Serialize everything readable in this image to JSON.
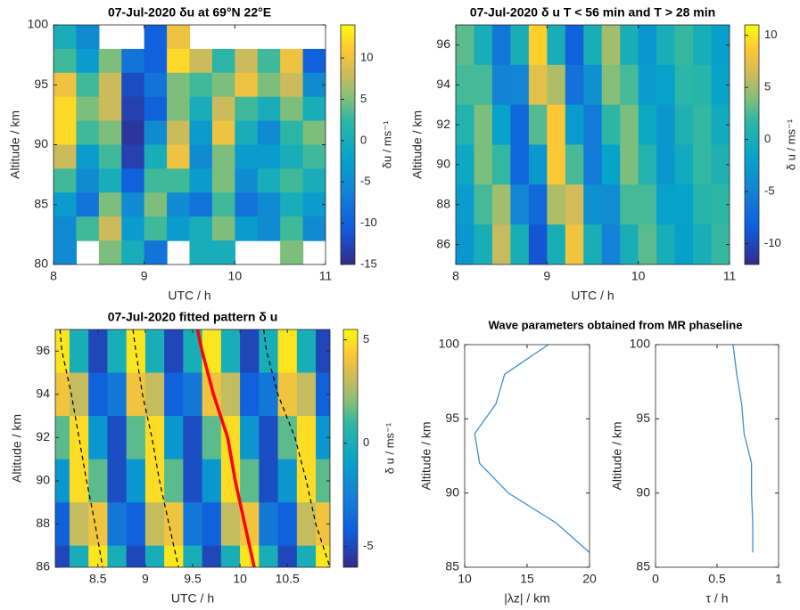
{
  "chart_data": [
    {
      "type": "heatmap",
      "title": "07-Jul-2020 δu at 69°N 22°E",
      "xlabel": "UTC / h",
      "ylabel": "Altitude / km",
      "clabel": "δu / ms⁻¹",
      "xlim": [
        8,
        11
      ],
      "xticks": [
        8,
        9,
        10,
        11
      ],
      "ylim": [
        80,
        100
      ],
      "yticks": [
        80,
        85,
        90,
        95,
        100
      ],
      "clim": [
        -15,
        14
      ],
      "cticks": [
        -15,
        -10,
        -5,
        0,
        5,
        10
      ],
      "x": [
        8.125,
        8.375,
        8.625,
        8.875,
        9.125,
        9.375,
        9.625,
        9.875,
        10.125,
        10.375,
        10.625,
        10.875
      ],
      "y": [
        99,
        97,
        95,
        93,
        91,
        89,
        87,
        85,
        83,
        81
      ],
      "z": [
        [
          0,
          -5,
          null,
          null,
          -10,
          10,
          null,
          null,
          null,
          null,
          null,
          null
        ],
        [
          3,
          -3,
          5,
          -8,
          -10,
          12,
          8,
          2,
          8,
          3,
          10,
          -10
        ],
        [
          10,
          3,
          8,
          -12,
          -8,
          5,
          3,
          5,
          10,
          5,
          8,
          -5
        ],
        [
          12,
          5,
          8,
          -13,
          -10,
          5,
          0,
          8,
          3,
          0,
          5,
          0
        ],
        [
          12,
          3,
          5,
          -14,
          -5,
          8,
          -3,
          10,
          0,
          -5,
          2,
          5
        ],
        [
          8,
          -3,
          3,
          -13,
          0,
          10,
          -5,
          5,
          -3,
          -3,
          0,
          3
        ],
        [
          3,
          -5,
          0,
          -10,
          3,
          3,
          -3,
          5,
          -5,
          0,
          3,
          0
        ],
        [
          -3,
          -8,
          5,
          -5,
          5,
          -5,
          -8,
          3,
          -8,
          -5,
          0,
          -3
        ],
        [
          -5,
          3,
          8,
          -3,
          3,
          -3,
          0,
          5,
          -3,
          -5,
          3,
          -5
        ],
        [
          -5,
          null,
          5,
          0,
          -8,
          null,
          0,
          0,
          null,
          null,
          5,
          null
        ]
      ]
    },
    {
      "type": "heatmap",
      "title": "07-Jul-2020 δ u T < 56 min and T > 28 min",
      "xlabel": "UTC / h",
      "ylabel": "Altitude / km",
      "clabel": "δ u / ms⁻¹",
      "xlim": [
        8,
        11
      ],
      "xticks": [
        8,
        9,
        10,
        11
      ],
      "ylim": [
        85,
        97
      ],
      "yticks": [
        86,
        88,
        90,
        92,
        94,
        96
      ],
      "clim": [
        -12,
        11
      ],
      "cticks": [
        -10,
        -5,
        0,
        5,
        10
      ],
      "x": [
        8.1,
        8.3,
        8.5,
        8.7,
        8.9,
        9.1,
        9.3,
        9.5,
        9.7,
        9.9,
        10.1,
        10.3,
        10.5,
        10.7,
        10.9
      ],
      "y": [
        96,
        94,
        92,
        90,
        88,
        86
      ],
      "z": [
        [
          3,
          0,
          -6,
          0,
          9,
          0,
          -8,
          0,
          5,
          0,
          -3,
          0,
          2,
          0,
          -2
        ],
        [
          2.4,
          2.4,
          -4.9,
          -4.7,
          7.3,
          5.3,
          -6.5,
          -3.5,
          4,
          2.4,
          -2.4,
          -1.8,
          1.6,
          1.2,
          -1.6
        ],
        [
          0.9,
          3.8,
          -1.9,
          -7.6,
          2.8,
          8.6,
          -2.5,
          -5.7,
          1.6,
          3.8,
          -0.9,
          -2.9,
          0.6,
          1.9,
          -0.6
        ],
        [
          -0.9,
          3.8,
          1.9,
          -7.6,
          -2.8,
          8.6,
          2.5,
          -5.7,
          -1.6,
          3.8,
          0.9,
          -2.9,
          -0.6,
          1.9,
          0.6
        ],
        [
          -2.4,
          2.4,
          4.9,
          -4.7,
          -7.3,
          5.3,
          6.5,
          -3.5,
          -4,
          2.4,
          2.4,
          -1.8,
          -1.6,
          1.2,
          1.6
        ],
        [
          -3,
          0,
          6,
          0,
          -9,
          0,
          8,
          0,
          -5,
          0,
          3,
          0,
          -2,
          0,
          2
        ]
      ]
    },
    {
      "type": "heatmap",
      "title": "07-Jul-2020 fitted pattern δ u",
      "xlabel": "UTC / h",
      "ylabel": "Altitude / km",
      "clabel": "δ u / ms⁻¹",
      "xlim": [
        8.05,
        10.95
      ],
      "xticks": [
        8.5,
        9,
        9.5,
        10,
        10.5
      ],
      "ylim": [
        86,
        97
      ],
      "yticks": [
        86,
        88,
        90,
        92,
        94,
        96
      ],
      "clim": [
        -6,
        5.5
      ],
      "cticks": [
        -5,
        0,
        5
      ],
      "x": [
        8.1,
        8.3,
        8.5,
        8.7,
        8.9,
        9.1,
        9.3,
        9.5,
        9.7,
        9.9,
        10.1,
        10.3,
        10.5,
        10.7,
        10.9
      ],
      "y": [
        96,
        94,
        92,
        90,
        88,
        86
      ],
      "z": [
        [
          5,
          0,
          -5,
          0,
          5,
          0,
          -5,
          0,
          5,
          0,
          -5,
          0,
          5,
          0,
          -5
        ],
        [
          4,
          3,
          -4,
          -3,
          4,
          3,
          -4,
          -3,
          4,
          3,
          -4,
          -3,
          4,
          3,
          -4
        ],
        [
          1.5,
          4.8,
          -1.5,
          -4.8,
          1.5,
          4.8,
          -1.5,
          -4.8,
          1.5,
          4.8,
          -1.5,
          -4.8,
          1.5,
          4.8,
          -1.5
        ],
        [
          -1.5,
          4.8,
          1.5,
          -4.8,
          -1.5,
          4.8,
          1.5,
          -4.8,
          -1.5,
          4.8,
          1.5,
          -4.8,
          -1.5,
          4.8,
          1.5
        ],
        [
          -4,
          3,
          4,
          -3,
          -4,
          3,
          4,
          -3,
          -4,
          3,
          4,
          -3,
          -4,
          3,
          4
        ],
        [
          -5,
          0,
          5,
          0,
          -5,
          0,
          5,
          0,
          -5,
          0,
          5,
          0,
          -5,
          0,
          5
        ]
      ],
      "lines": {
        "y": [
          97,
          96,
          94,
          92,
          90,
          88,
          86
        ],
        "series": [
          {
            "color": "#000000",
            "style": "dashed",
            "values": [
              8.1,
              8.12,
              8.22,
              8.3,
              8.38,
              8.47,
              8.55
            ]
          },
          {
            "color": "#000000",
            "style": "dashed",
            "values": [
              8.87,
              8.9,
              8.97,
              9.07,
              9.15,
              9.25,
              9.35
            ]
          },
          {
            "color": "#ff0000",
            "style": "solid",
            "values": [
              9.55,
              9.6,
              9.72,
              9.87,
              9.95,
              10.05,
              10.15
            ]
          },
          {
            "color": "#000000",
            "style": "dashed",
            "values": [
              10.25,
              10.28,
              10.4,
              10.58,
              10.7,
              10.8,
              10.95
            ]
          }
        ]
      }
    },
    {
      "type": "line",
      "title": "Wave parameters obtained from MR phaseline",
      "xlabel": "|λz| / km",
      "ylabel": "Altitude / km",
      "xlim": [
        10,
        20
      ],
      "xticks": [
        10,
        15,
        20
      ],
      "ylim": [
        85,
        100
      ],
      "yticks": [
        85,
        90,
        95,
        100
      ],
      "y": [
        100,
        98,
        96,
        94,
        92,
        90,
        88,
        86
      ],
      "series": [
        {
          "color": "#3d8fd1",
          "values": [
            16.7,
            13.2,
            12.5,
            10.8,
            11.2,
            13.5,
            17.3,
            20
          ]
        }
      ]
    },
    {
      "type": "line",
      "xlabel": "τ / h",
      "ylabel": "Altitude / km",
      "xlim": [
        0,
        1
      ],
      "xticks": [
        0,
        0.5,
        1
      ],
      "ylim": [
        85,
        100
      ],
      "yticks": [
        85,
        90,
        95,
        100
      ],
      "y": [
        100,
        98,
        96,
        94,
        92,
        90,
        88,
        86
      ],
      "series": [
        {
          "color": "#3d8fd1",
          "values": [
            0.63,
            0.66,
            0.7,
            0.72,
            0.78,
            0.78,
            0.79,
            0.79
          ]
        }
      ]
    }
  ]
}
